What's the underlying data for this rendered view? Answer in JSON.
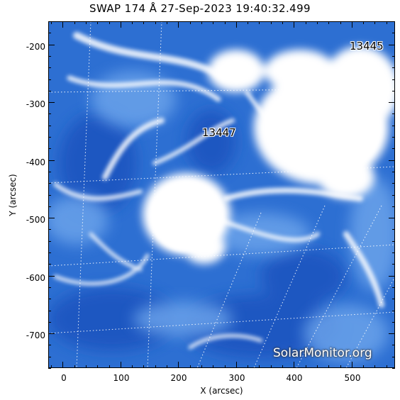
{
  "title": "SWAP 174 Å 27-Sep-2023 19:40:32.499",
  "axes": {
    "xlabel": "X (arcsec)",
    "ylabel": "Y (arcsec)",
    "x_ticks": [
      "0",
      "100",
      "200",
      "300",
      "400",
      "500"
    ],
    "y_ticks": [
      "-200",
      "-300",
      "-400",
      "-500",
      "-600",
      "-700"
    ],
    "x_range": [
      -25,
      575
    ],
    "y_range": [
      -760,
      -160
    ]
  },
  "active_regions": [
    {
      "id": "ar-13445",
      "label": "13445"
    },
    {
      "id": "ar-13447",
      "label": "13447"
    }
  ],
  "watermark": "SolarMonitor.org",
  "colors": {
    "background_plasma": "#2d6fd2",
    "bright_emission": "#ffffff",
    "dark_plasma": "#1a4fb8"
  }
}
